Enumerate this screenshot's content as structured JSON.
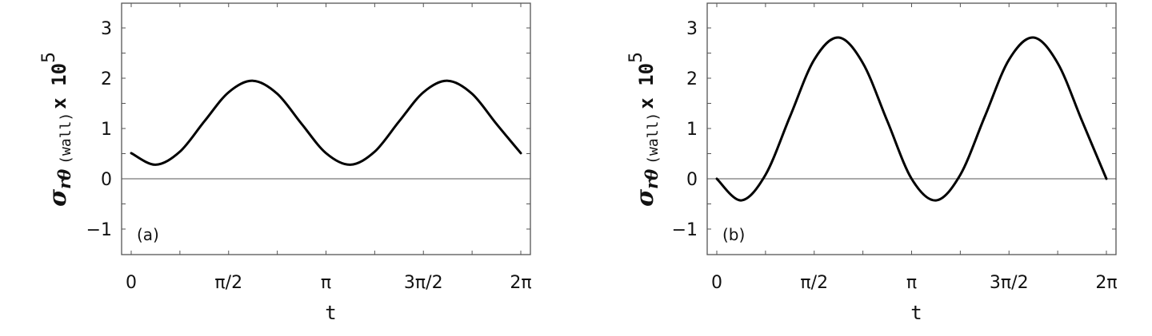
{
  "chart_data": [
    {
      "type": "line",
      "panel_label": "(a)",
      "title": "",
      "xlabel": "t",
      "ylabel": {
        "symbol": "σ",
        "subscript": "rθ",
        "qualifier": "(wall)",
        "multiplier": "x 10",
        "exponent": "5"
      },
      "xlim": [
        0,
        6.2832
      ],
      "ylim": [
        -1.5,
        3.5
      ],
      "x_ticks": [
        {
          "value": 0,
          "label": "0"
        },
        {
          "value": 1.5708,
          "label": "π/2"
        },
        {
          "value": 3.1416,
          "label": "π"
        },
        {
          "value": 4.7124,
          "label": "3π/2"
        },
        {
          "value": 6.2832,
          "label": "2π"
        }
      ],
      "y_ticks": [
        {
          "value": -1,
          "label": "−1"
        },
        {
          "value": 0,
          "label": "0"
        },
        {
          "value": 1,
          "label": "1"
        },
        {
          "value": 2,
          "label": "2"
        },
        {
          "value": 3,
          "label": "3"
        }
      ],
      "zero_line": true,
      "grid": false,
      "legend": null,
      "x_units": "multiples of π/8",
      "x": [
        0,
        0.3927,
        0.7854,
        1.1781,
        1.5708,
        1.9635,
        2.3562,
        2.7489,
        3.1416,
        3.5343,
        3.927,
        4.3197,
        4.7124,
        5.1051,
        5.4978,
        5.8905,
        6.2832
      ],
      "series": [
        {
          "name": "σ_rθ(wall) x 10^5",
          "values": [
            0.51,
            0.28,
            0.54,
            1.14,
            1.72,
            1.95,
            1.69,
            1.09,
            0.51,
            0.28,
            0.54,
            1.14,
            1.72,
            1.95,
            1.69,
            1.09,
            0.51
          ]
        }
      ]
    },
    {
      "type": "line",
      "panel_label": "(b)",
      "title": "",
      "xlabel": "t",
      "ylabel": {
        "symbol": "σ",
        "subscript": "rθ",
        "qualifier": "(wall)",
        "multiplier": "x 10",
        "exponent": "5"
      },
      "xlim": [
        0,
        6.2832
      ],
      "ylim": [
        -1.5,
        3.5
      ],
      "x_ticks": [
        {
          "value": 0,
          "label": "0"
        },
        {
          "value": 1.5708,
          "label": "π/2"
        },
        {
          "value": 3.1416,
          "label": "π"
        },
        {
          "value": 4.7124,
          "label": "3π/2"
        },
        {
          "value": 6.2832,
          "label": "2π"
        }
      ],
      "y_ticks": [
        {
          "value": -1,
          "label": "−1"
        },
        {
          "value": 0,
          "label": "0"
        },
        {
          "value": 1,
          "label": "1"
        },
        {
          "value": 2,
          "label": "2"
        },
        {
          "value": 3,
          "label": "3"
        }
      ],
      "zero_line": true,
      "grid": false,
      "legend": null,
      "x": [
        0,
        0.3927,
        0.7854,
        1.1781,
        1.5708,
        1.9635,
        2.3562,
        2.7489,
        3.1416,
        3.5343,
        3.927,
        4.3197,
        4.7124,
        5.1051,
        5.4978,
        5.8905,
        6.2832
      ],
      "series": [
        {
          "name": "σ_rθ(wall) x 10^5",
          "values": [
            0.0,
            -0.43,
            0.08,
            1.23,
            2.37,
            2.81,
            2.3,
            1.15,
            0.0,
            -0.43,
            0.08,
            1.23,
            2.37,
            2.81,
            2.3,
            1.15,
            0.0
          ]
        }
      ]
    }
  ],
  "colors": {
    "curve": "#000000",
    "axes": "#555555",
    "background": "#ffffff"
  }
}
